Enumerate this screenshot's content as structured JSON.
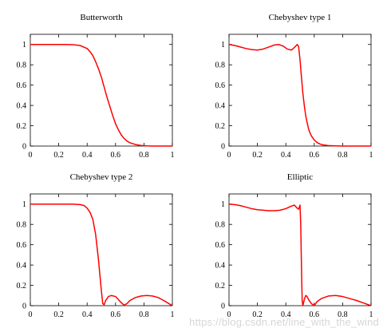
{
  "colors": {
    "curve": "#ff0000",
    "axis": "#000000"
  },
  "watermark": "https://blog.csdn.net/line_with_the_wind",
  "chart_data": [
    {
      "type": "line",
      "title": "Butterworth",
      "xlabel": "",
      "ylabel": "",
      "xlim": [
        0,
        1
      ],
      "ylim": [
        0,
        1.1
      ],
      "xticks": [
        "0",
        "0.2",
        "0.4",
        "0.6",
        "0.8",
        "1"
      ],
      "yticks": [
        "0",
        "0.2",
        "0.4",
        "0.6",
        "0.8",
        "1"
      ],
      "grid": false,
      "series": [
        {
          "x": [
            0,
            0.05,
            0.1,
            0.15,
            0.2,
            0.25,
            0.3,
            0.35,
            0.4,
            0.42,
            0.44,
            0.46,
            0.48,
            0.5,
            0.52,
            0.54,
            0.56,
            0.58,
            0.6,
            0.62,
            0.64,
            0.66,
            0.68,
            0.7,
            0.74,
            0.78,
            0.82,
            0.86,
            0.9,
            0.95,
            1
          ],
          "y": [
            1,
            1,
            1,
            1,
            1,
            1,
            0.998,
            0.99,
            0.96,
            0.93,
            0.89,
            0.83,
            0.76,
            0.68,
            0.58,
            0.48,
            0.39,
            0.3,
            0.22,
            0.16,
            0.11,
            0.075,
            0.05,
            0.033,
            0.015,
            0.006,
            0.002,
            0,
            0,
            0,
            0
          ]
        }
      ]
    },
    {
      "type": "line",
      "title": "Chebyshev type 1",
      "xlabel": "",
      "ylabel": "",
      "xlim": [
        0,
        1
      ],
      "ylim": [
        0,
        1.1
      ],
      "xticks": [
        "0",
        "0.2",
        "0.4",
        "0.6",
        "0.8",
        "1"
      ],
      "yticks": [
        "0",
        "0.2",
        "0.4",
        "0.6",
        "0.8",
        "1"
      ],
      "grid": false,
      "series": [
        {
          "x": [
            0,
            0.04,
            0.08,
            0.12,
            0.16,
            0.2,
            0.24,
            0.28,
            0.32,
            0.35,
            0.38,
            0.41,
            0.44,
            0.46,
            0.48,
            0.49,
            0.5,
            0.51,
            0.52,
            0.53,
            0.54,
            0.55,
            0.56,
            0.57,
            0.58,
            0.6,
            0.62,
            0.64,
            0.66,
            0.7,
            0.75,
            0.8,
            0.85,
            0.9,
            1
          ],
          "y": [
            1,
            0.99,
            0.975,
            0.96,
            0.95,
            0.945,
            0.955,
            0.975,
            0.995,
            1,
            0.985,
            0.955,
            0.945,
            0.97,
            1,
            0.98,
            0.85,
            0.68,
            0.52,
            0.4,
            0.3,
            0.23,
            0.17,
            0.13,
            0.1,
            0.06,
            0.035,
            0.02,
            0.012,
            0.005,
            0.002,
            0,
            0,
            0,
            0
          ]
        }
      ]
    },
    {
      "type": "line",
      "title": "Chebyshev type 2",
      "xlabel": "",
      "ylabel": "",
      "xlim": [
        0,
        1
      ],
      "ylim": [
        0,
        1.1
      ],
      "xticks": [
        "0",
        "0.2",
        "0.4",
        "0.6",
        "0.8",
        "1"
      ],
      "yticks": [
        "0",
        "0.2",
        "0.4",
        "0.6",
        "0.8",
        "1"
      ],
      "grid": false,
      "series": [
        {
          "x": [
            0,
            0.05,
            0.1,
            0.15,
            0.2,
            0.25,
            0.3,
            0.35,
            0.38,
            0.4,
            0.42,
            0.44,
            0.46,
            0.48,
            0.5,
            0.51,
            0.52,
            0.53,
            0.55,
            0.57,
            0.6,
            0.62,
            0.64,
            0.66,
            0.68,
            0.7,
            0.74,
            0.78,
            0.82,
            0.86,
            0.9,
            0.94,
            0.97,
            1
          ],
          "y": [
            1,
            1,
            1,
            1,
            1,
            1,
            1,
            0.995,
            0.985,
            0.96,
            0.92,
            0.85,
            0.7,
            0.45,
            0.15,
            0.02,
            0.01,
            0.05,
            0.09,
            0.1,
            0.09,
            0.06,
            0.03,
            0.005,
            0.02,
            0.05,
            0.08,
            0.095,
            0.1,
            0.095,
            0.08,
            0.05,
            0.025,
            0
          ]
        }
      ]
    },
    {
      "type": "line",
      "title": "Elliptic",
      "xlabel": "",
      "ylabel": "",
      "xlim": [
        0,
        1
      ],
      "ylim": [
        0,
        1.1
      ],
      "xticks": [
        "0",
        "0.2",
        "0.4",
        "0.6",
        "0.8",
        "1"
      ],
      "yticks": [
        "0",
        "0.2",
        "0.4",
        "0.6",
        "0.8",
        "1"
      ],
      "grid": false,
      "series": [
        {
          "x": [
            0,
            0.04,
            0.08,
            0.12,
            0.16,
            0.2,
            0.24,
            0.28,
            0.32,
            0.36,
            0.4,
            0.43,
            0.46,
            0.48,
            0.49,
            0.5,
            0.505,
            0.51,
            0.515,
            0.52,
            0.53,
            0.54,
            0.55,
            0.56,
            0.58,
            0.6,
            0.62,
            0.65,
            0.7,
            0.75,
            0.8,
            0.85,
            0.9,
            0.95,
            1
          ],
          "y": [
            1,
            0.995,
            0.985,
            0.97,
            0.955,
            0.945,
            0.94,
            0.935,
            0.935,
            0.94,
            0.955,
            0.975,
            0.99,
            0.96,
            0.95,
            0.99,
            0.8,
            0.4,
            0.05,
            0.0,
            0.06,
            0.1,
            0.09,
            0.06,
            0.02,
            0.0,
            0.04,
            0.07,
            0.095,
            0.1,
            0.09,
            0.07,
            0.05,
            0.025,
            0
          ]
        }
      ]
    }
  ]
}
